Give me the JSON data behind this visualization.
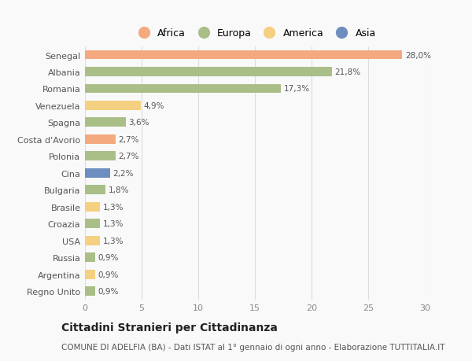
{
  "countries": [
    "Senegal",
    "Albania",
    "Romania",
    "Venezuela",
    "Spagna",
    "Costa d'Avorio",
    "Polonia",
    "Cina",
    "Bulgaria",
    "Brasile",
    "Croazia",
    "USA",
    "Russia",
    "Argentina",
    "Regno Unito"
  ],
  "values": [
    28.0,
    21.8,
    17.3,
    4.9,
    3.6,
    2.7,
    2.7,
    2.2,
    1.8,
    1.3,
    1.3,
    1.3,
    0.9,
    0.9,
    0.9
  ],
  "labels": [
    "28,0%",
    "21,8%",
    "17,3%",
    "4,9%",
    "3,6%",
    "2,7%",
    "2,7%",
    "2,2%",
    "1,8%",
    "1,3%",
    "1,3%",
    "1,3%",
    "0,9%",
    "0,9%",
    "0,9%"
  ],
  "continents": [
    "Africa",
    "Europa",
    "Europa",
    "America",
    "Europa",
    "Africa",
    "Europa",
    "Asia",
    "Europa",
    "America",
    "Europa",
    "America",
    "Europa",
    "America",
    "Europa"
  ],
  "continent_colors": {
    "Africa": "#F4A97F",
    "Europa": "#AABF88",
    "America": "#F5D080",
    "Asia": "#6D8FC0"
  },
  "legend_order": [
    "Africa",
    "Europa",
    "America",
    "Asia"
  ],
  "title": "Cittadini Stranieri per Cittadinanza",
  "subtitle": "COMUNE DI ADELFIA (BA) - Dati ISTAT al 1° gennaio di ogni anno - Elaborazione TUTTITALIA.IT",
  "xlim": [
    0,
    30
  ],
  "xticks": [
    0,
    5,
    10,
    15,
    20,
    25,
    30
  ],
  "background_color": "#f9f9f9",
  "grid_color": "#dddddd",
  "title_fontsize": 10,
  "subtitle_fontsize": 7.5,
  "label_fontsize": 7.5,
  "tick_fontsize": 8,
  "legend_fontsize": 9
}
